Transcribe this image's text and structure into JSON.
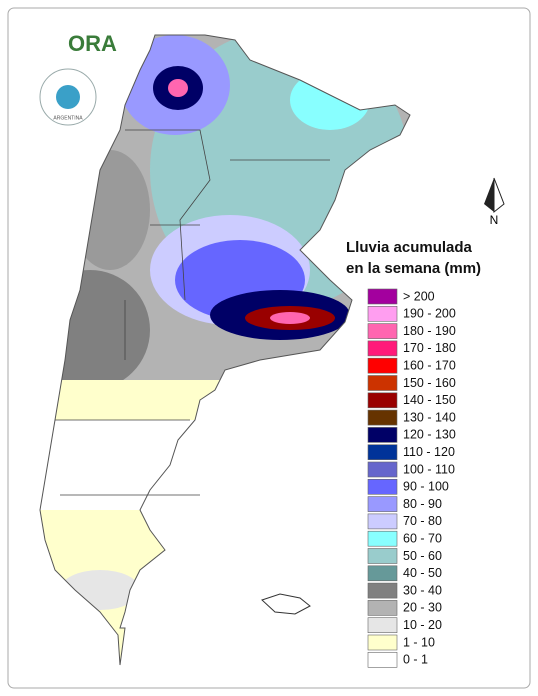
{
  "logo": {
    "text": "ORA",
    "seal_text": "ARGENTINA"
  },
  "compass": {
    "label": "N"
  },
  "legend": {
    "title": [
      "Lluvia acumulada",
      "en la semana (mm)"
    ],
    "items": [
      {
        "label": "> 200",
        "color": "#a3009e"
      },
      {
        "label": "190 - 200",
        "color": "#ff9ef0"
      },
      {
        "label": "180 - 190",
        "color": "#ff66b0"
      },
      {
        "label": "170 - 180",
        "color": "#ff1a7a"
      },
      {
        "label": "160 - 170",
        "color": "#ff0000"
      },
      {
        "label": "150 - 160",
        "color": "#cc3300"
      },
      {
        "label": "140 - 150",
        "color": "#990000"
      },
      {
        "label": "130 - 140",
        "color": "#663300"
      },
      {
        "label": "120 - 130",
        "color": "#000066"
      },
      {
        "label": "110 - 120",
        "color": "#003399"
      },
      {
        "label": "100 - 110",
        "color": "#6666cc"
      },
      {
        "label": "90 - 100",
        "color": "#6666ff"
      },
      {
        "label": "80 - 90",
        "color": "#9999ff"
      },
      {
        "label": "70 - 80",
        "color": "#ccccff"
      },
      {
        "label": "60 - 70",
        "color": "#88ffff"
      },
      {
        "label": "50 - 60",
        "color": "#99cccc"
      },
      {
        "label": "40 - 50",
        "color": "#669999"
      },
      {
        "label": "30 - 40",
        "color": "#808080"
      },
      {
        "label": "20 - 30",
        "color": "#b3b3b3"
      },
      {
        "label": "10 - 20",
        "color": "#e6e6e6"
      },
      {
        "label": "1 - 10",
        "color": "#ffffcc"
      },
      {
        "label": "0 - 1",
        "color": "#ffffff"
      }
    ]
  }
}
